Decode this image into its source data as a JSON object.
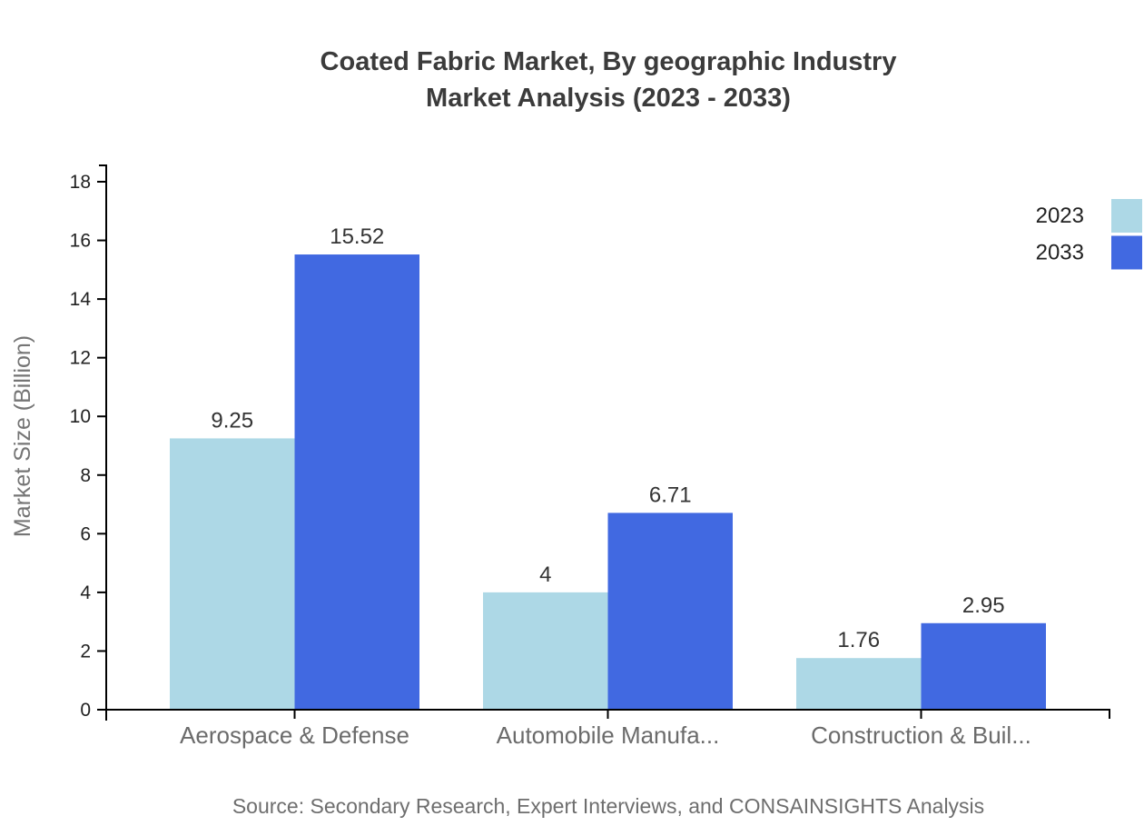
{
  "title": {
    "line1": "Coated Fabric Market, By geographic Industry",
    "line2": "Market Analysis (2023 - 2033)"
  },
  "source": "Source: Secondary Research, Expert Interviews, and CONSAINSIGHTS Analysis",
  "colors": {
    "series_2023": "#ADD8E6",
    "series_2033": "#4169E1",
    "title_text": "#3b3b3b",
    "axis_line": "#000000",
    "tick_label": "#222222",
    "category_label": "#6b6b6b",
    "axis_title": "#757575",
    "value_label": "#333333",
    "source_text": "#6e6e6e"
  },
  "chart_data": {
    "type": "bar",
    "title": "Coated Fabric Market, By geographic Industry Market Analysis (2023 - 2033)",
    "categories": [
      "Aerospace & Defense",
      "Automobile Manufa...",
      "Construction & Buil..."
    ],
    "series": [
      {
        "name": "2023",
        "color": "#ADD8E6",
        "values": [
          9.25,
          4,
          1.76
        ]
      },
      {
        "name": "2033",
        "color": "#4169E1",
        "values": [
          15.52,
          6.71,
          2.95
        ]
      }
    ],
    "xlabel": "",
    "ylabel": "Market Size (Billion)",
    "ylim": [
      0,
      18
    ],
    "ytick_step": 2,
    "yticks": [
      0,
      2,
      4,
      6,
      8,
      10,
      12,
      14,
      16,
      18
    ],
    "grid": false,
    "legend_position": "top-right",
    "value_labels": true
  }
}
